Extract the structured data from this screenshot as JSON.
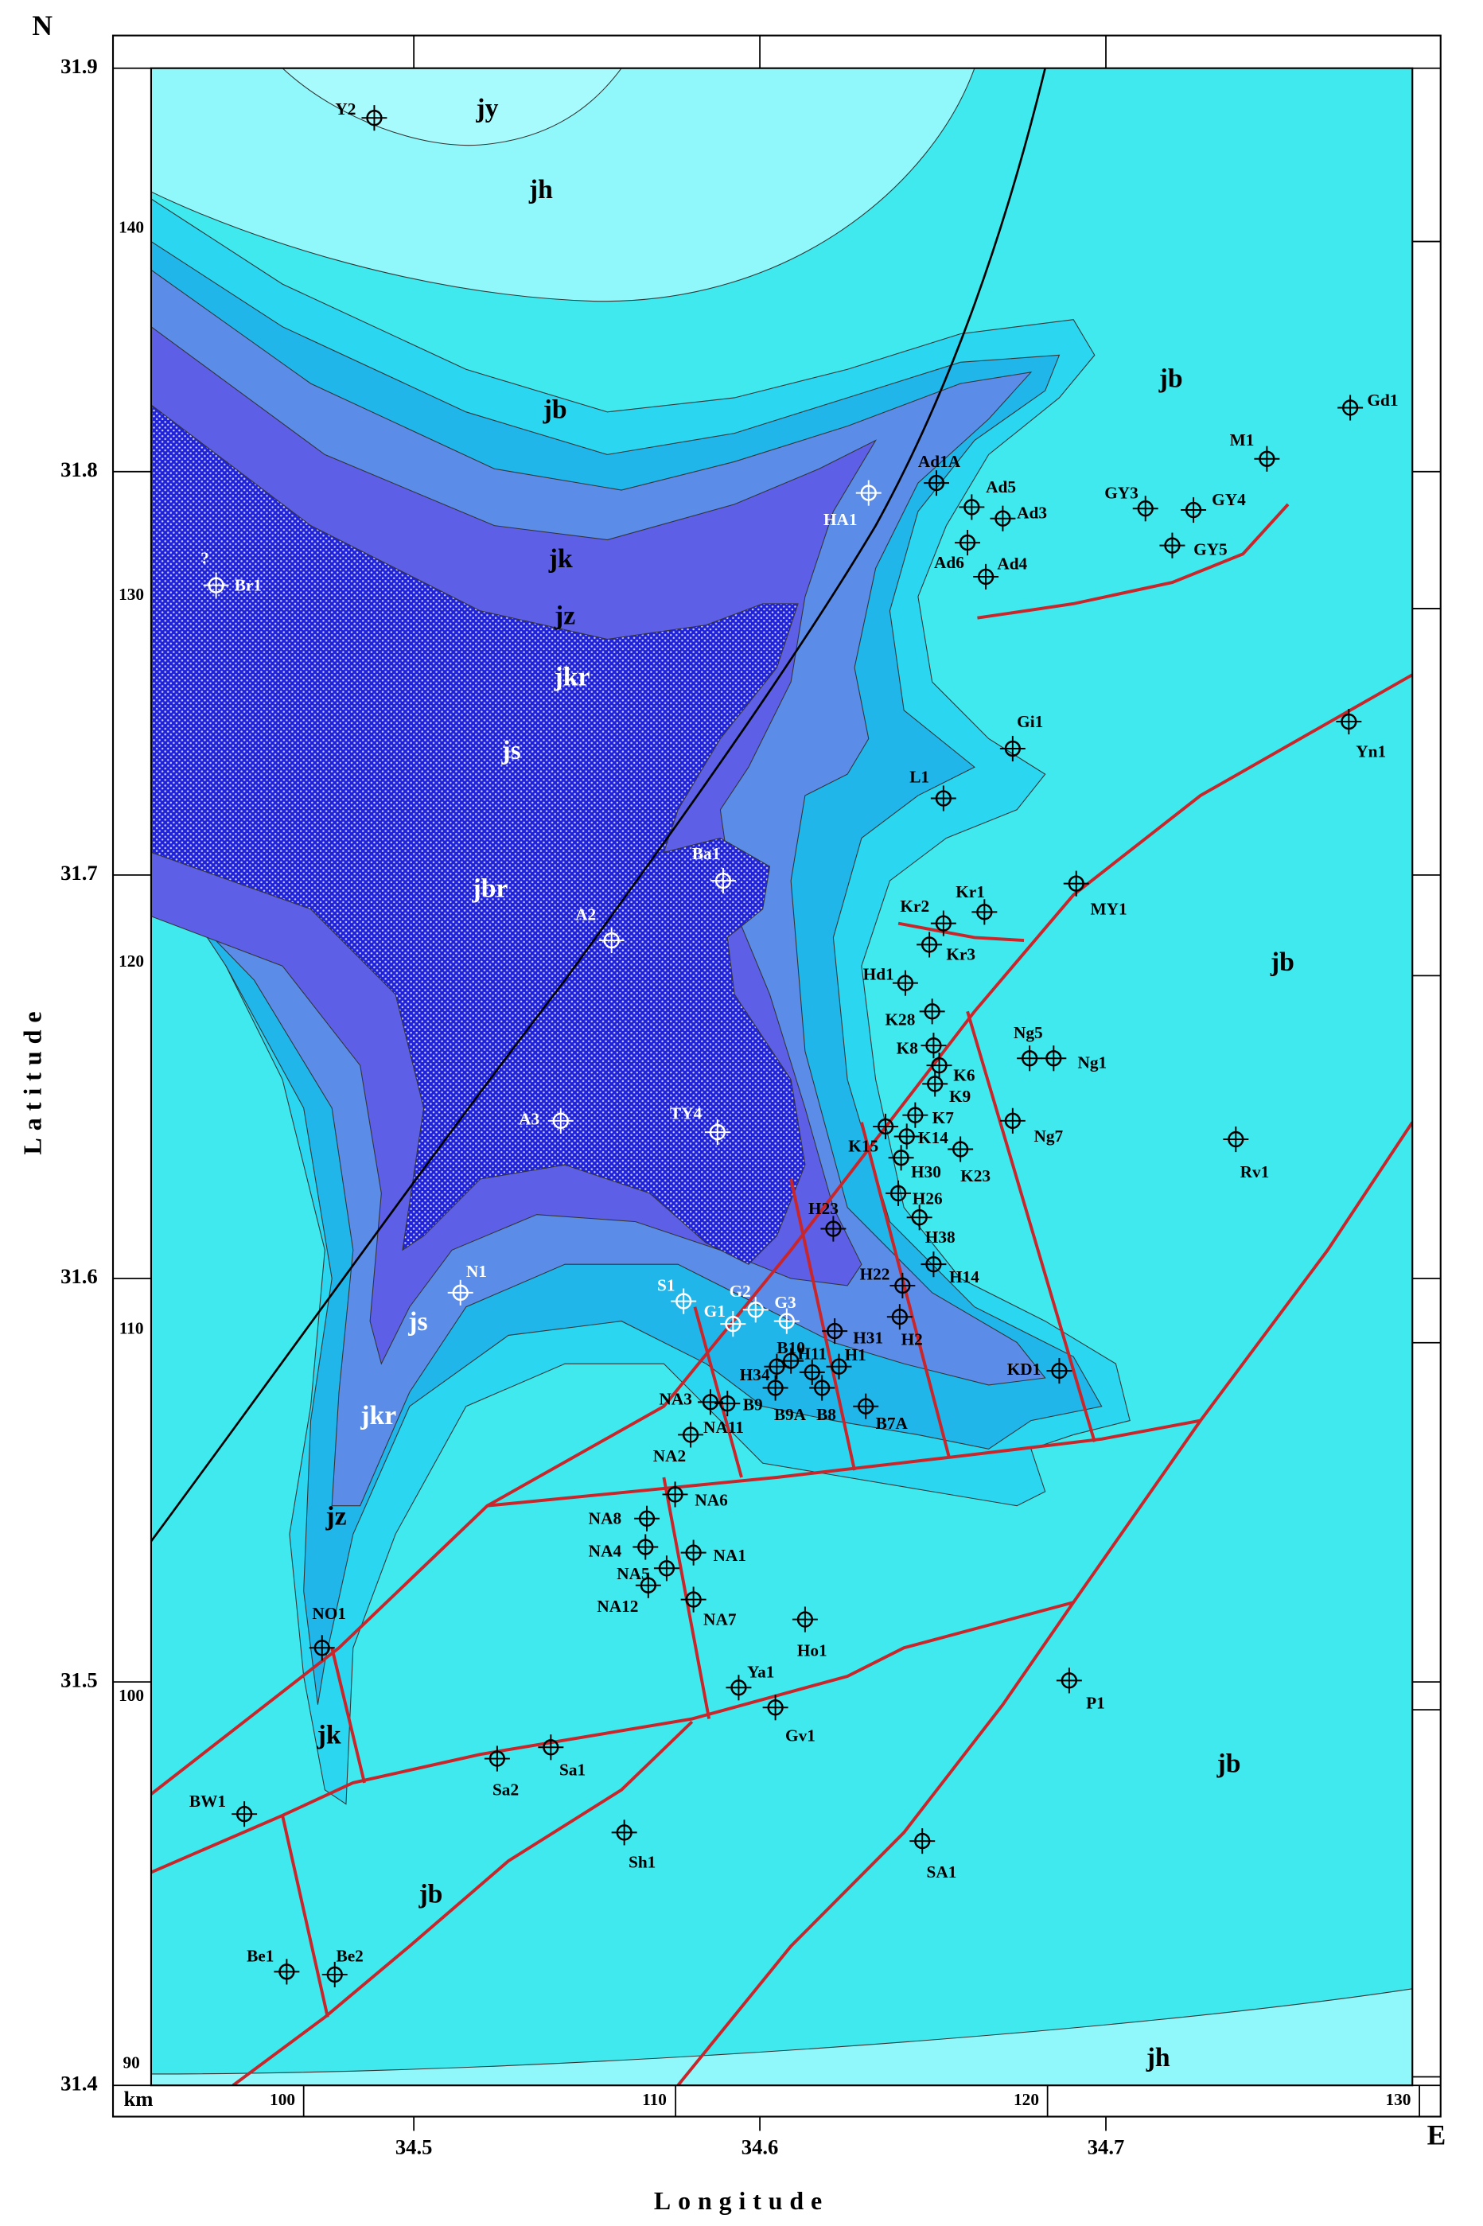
{
  "map": {
    "north": "N",
    "east": "E",
    "km_label": "km",
    "y_axis_label": "Latitude",
    "x_axis_label": "Longitude",
    "uncertain_mark": "?",
    "lat_ticks": [
      31.9,
      31.8,
      31.7,
      31.6,
      31.5,
      31.4
    ],
    "lon_ticks": [
      34.5,
      34.6,
      34.7
    ],
    "km_x_ticks": [
      100,
      110,
      120,
      130
    ],
    "km_y_ticks": [
      140,
      130,
      120,
      110,
      100,
      90
    ],
    "formations": [
      "jy",
      "jh",
      "jb",
      "jb",
      "jk",
      "jz",
      "jkr",
      "js",
      "jbr",
      "js",
      "jkr",
      "jz",
      "jk",
      "jb",
      "jb",
      "jb",
      "jh"
    ],
    "wells": [
      "Y2",
      "HA1",
      "Ad1A",
      "Ad5",
      "Ad3",
      "Ad6",
      "Ad4",
      "GY3",
      "GY4",
      "GY5",
      "M1",
      "Gd1",
      "Br1",
      "Gi1",
      "L1",
      "Yn1",
      "Ba1",
      "A2",
      "MY1",
      "Kr1",
      "Kr2",
      "Kr3",
      "Hd1",
      "K28",
      "K8",
      "K6",
      "K9",
      "Ng5",
      "Ng1",
      "K7",
      "K14",
      "K15",
      "H30",
      "K23",
      "Ng7",
      "Rv1",
      "A3",
      "TY4",
      "H26",
      "H23",
      "H38",
      "H14",
      "N1",
      "S1",
      "G1",
      "G2",
      "G3",
      "H22",
      "H2",
      "H31",
      "KD1",
      "H34",
      "B10",
      "H11",
      "H1",
      "B9",
      "B9A",
      "B8",
      "B7A",
      "NA3",
      "NA11",
      "NA2",
      "NA6",
      "NA8",
      "NA4",
      "NA1",
      "NA5",
      "NA12",
      "NA7",
      "Ho1",
      "NO1",
      "Ya1",
      "Gv1",
      "P1",
      "Sa1",
      "Sa2",
      "BW1",
      "Sh1",
      "SA1",
      "Be1",
      "Be2"
    ]
  }
}
